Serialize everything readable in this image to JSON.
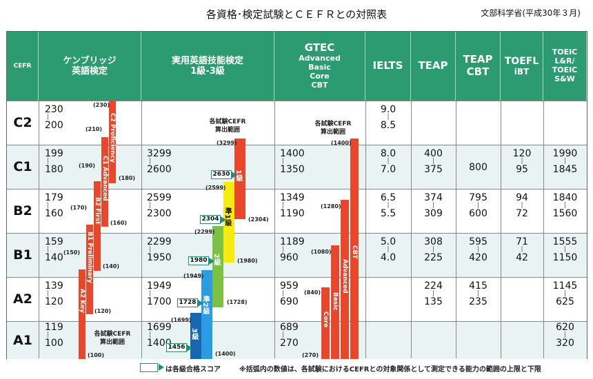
{
  "title": "各資格･検定試験とＣＥＦＲとの対照表",
  "subtitle": "文部科学省(平成30年３月)",
  "headers": {
    "cefr": "CEFR",
    "cambridge": [
      "ケンブリッジ",
      "英語検定"
    ],
    "eiken": [
      "実用英語技能検定",
      "1級-3級"
    ],
    "gtec": [
      "GTEC",
      "Advanced",
      "Basic",
      "Core",
      "CBT"
    ],
    "ielts": "IELTS",
    "teap": "TEAP",
    "teapcbt": [
      "TEAP",
      "CBT"
    ],
    "toefl": [
      "TOEFL",
      "iBT"
    ],
    "toeic": [
      "TOEIC",
      "L&R/",
      "TOEIC",
      "S&W"
    ]
  },
  "levels": [
    "C2",
    "C1",
    "B2",
    "B1",
    "A2",
    "A1"
  ],
  "cambridge": [
    [
      "230",
      "200"
    ],
    [
      "199",
      "180"
    ],
    [
      "179",
      "160"
    ],
    [
      "159",
      "140"
    ],
    [
      "139",
      "120"
    ],
    [
      "119",
      "100"
    ]
  ],
  "eiken": [
    [
      "",
      ""
    ],
    [
      "3299",
      "2600"
    ],
    [
      "2599",
      "2300"
    ],
    [
      "2299",
      "1950"
    ],
    [
      "1949",
      "1700"
    ],
    [
      "1699",
      "1400"
    ]
  ],
  "gtec": [
    [
      "",
      ""
    ],
    [
      "1400",
      "1350"
    ],
    [
      "1349",
      "1190"
    ],
    [
      "1189",
      "960"
    ],
    [
      "959",
      "690"
    ],
    [
      "689",
      "270"
    ]
  ],
  "ielts": [
    [
      "9.0",
      "8.5"
    ],
    [
      "8.0",
      "7.0"
    ],
    [
      "6.5",
      "5.5"
    ],
    [
      "5.0",
      "4.0"
    ],
    [
      "",
      ""
    ],
    [
      "",
      ""
    ]
  ],
  "teap": [
    [
      "",
      ""
    ],
    [
      "400",
      "375"
    ],
    [
      "374",
      "309"
    ],
    [
      "308",
      "225"
    ],
    [
      "224",
      "135"
    ],
    [
      "",
      ""
    ]
  ],
  "teapcbt": [
    "",
    "800",
    [
      "795",
      "600"
    ],
    [
      "595",
      "420"
    ],
    [
      "415",
      "235"
    ],
    ""
  ],
  "toefl": [
    [
      "",
      ""
    ],
    [
      "120",
      "95"
    ],
    [
      "94",
      "72"
    ],
    [
      "71",
      "42"
    ],
    [
      "",
      ""
    ],
    [
      "",
      ""
    ]
  ],
  "toeic": [
    [
      "",
      ""
    ],
    [
      "1990",
      "1845"
    ],
    [
      "1840",
      "1560"
    ],
    [
      "1555",
      "1150"
    ],
    [
      "1145",
      "625"
    ],
    [
      "620",
      "320"
    ]
  ],
  "cambridge_bars": {
    "c2": "C2 Proficiency",
    "c1": "C1 Advanced",
    "b2": "B2 First",
    "b1": "B1 Preliminary",
    "a2": "A2 Key",
    "labels": [
      "(230)",
      "(210)",
      "(190)",
      "(180)",
      "(170)",
      "(160)",
      "(150)",
      "(140)",
      "(120)",
      "(100)"
    ]
  },
  "eiken_bars": {
    "g1": "1級",
    "gp1": "準1級",
    "g2": "2級",
    "gp2": "準2級",
    "g3": "3級",
    "labels": [
      "(3299)",
      "(2599)",
      "(2304)",
      "(2299)",
      "(1980)",
      "(1949)",
      "(1728)",
      "(1699)",
      "(1400)"
    ],
    "scores": [
      "2630",
      "2304",
      "1980",
      "1728",
      "1456"
    ]
  },
  "gtec_bars": {
    "core": "Core",
    "basic": "Basic",
    "advanced": "Advanced",
    "cbt": "CBT",
    "labels": [
      "(1400)",
      "(1280)",
      "(1080)",
      "(840)",
      "(270)"
    ]
  },
  "notes": {
    "range": [
      "各試験CEFR",
      "算出範囲"
    ]
  },
  "footer": {
    "legend": "は各級合格スコア",
    "note": "※括弧内の数値は、各試験におけるCEFRとの対象関係として測定できる能力の範囲の上限と下限"
  },
  "colors": {
    "header": "#2c9b72",
    "red": "#e8472c",
    "yellow": "#f6ea10",
    "green": "#7cc144",
    "blue": "#2c9ce0",
    "navy": "#1766b0"
  }
}
